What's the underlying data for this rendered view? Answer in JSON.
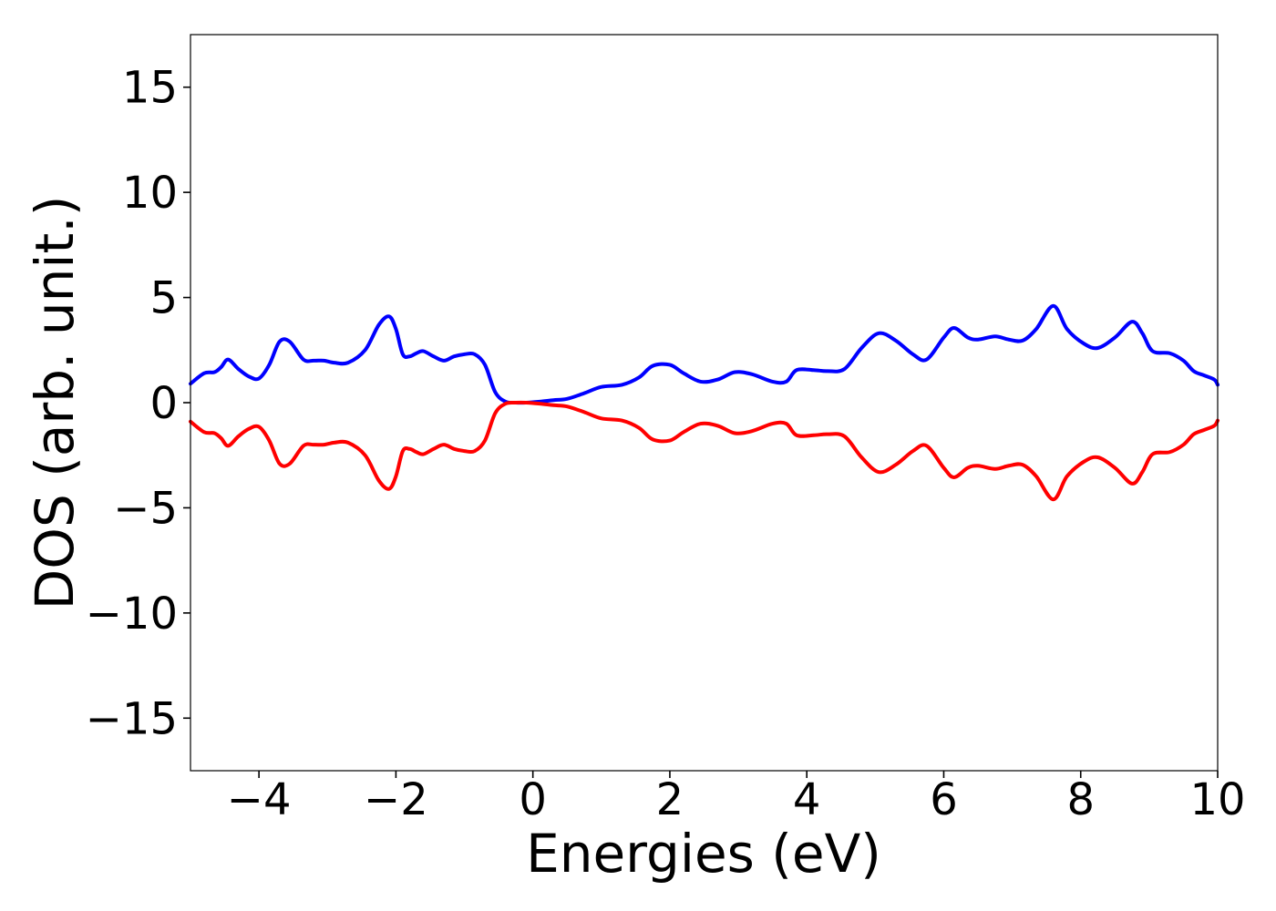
{
  "chart_data": {
    "type": "line",
    "title": "",
    "xlabel": "Energies (eV)",
    "ylabel": "DOS (arb. unit.)",
    "xlim": [
      -5,
      10
    ],
    "ylim": [
      -17.5,
      17.5
    ],
    "xticks": [
      -4,
      -2,
      0,
      2,
      4,
      6,
      8,
      10
    ],
    "yticks": [
      15,
      10,
      5,
      0,
      -5,
      -10,
      -15
    ],
    "xtick_labels": [
      "−4",
      "−2",
      "0",
      "2",
      "4",
      "6",
      "8",
      "10"
    ],
    "ytick_labels": [
      "15",
      "10",
      "5",
      "0",
      "−5",
      "−10",
      "−15"
    ],
    "grid": false,
    "series": [
      {
        "color": "#0000ff",
        "x": [
          -5.0,
          -4.8,
          -4.65,
          -4.55,
          -4.45,
          -4.3,
          -4.15,
          -4.0,
          -3.85,
          -3.7,
          -3.55,
          -3.35,
          -3.2,
          -3.05,
          -2.9,
          -2.7,
          -2.45,
          -2.25,
          -2.1,
          -2.0,
          -1.9,
          -1.8,
          -1.7,
          -1.6,
          -1.45,
          -1.3,
          -1.15,
          -1.0,
          -0.85,
          -0.7,
          -0.55,
          -0.4,
          -0.25,
          -0.1,
          0.1,
          0.3,
          0.5,
          0.75,
          1.0,
          1.3,
          1.55,
          1.75,
          2.0,
          2.2,
          2.45,
          2.7,
          2.95,
          3.2,
          3.5,
          3.7,
          3.85,
          4.1,
          4.3,
          4.55,
          4.8,
          5.05,
          5.3,
          5.55,
          5.75,
          6.0,
          6.15,
          6.35,
          6.5,
          6.75,
          6.95,
          7.15,
          7.35,
          7.6,
          7.8,
          8.05,
          8.25,
          8.5,
          8.75,
          8.9,
          9.05,
          9.3,
          9.5,
          9.65,
          9.8,
          9.95,
          10.0
        ],
        "y": [
          0.9,
          1.4,
          1.45,
          1.7,
          2.05,
          1.6,
          1.25,
          1.15,
          1.8,
          2.9,
          2.9,
          2.05,
          2.0,
          2.0,
          1.9,
          1.9,
          2.5,
          3.7,
          4.1,
          3.5,
          2.3,
          2.2,
          2.35,
          2.45,
          2.2,
          2.0,
          2.2,
          2.3,
          2.3,
          1.8,
          0.5,
          0.05,
          0.0,
          0.0,
          0.05,
          0.12,
          0.18,
          0.45,
          0.75,
          0.85,
          1.2,
          1.75,
          1.8,
          1.4,
          1.0,
          1.1,
          1.45,
          1.35,
          1.0,
          1.0,
          1.55,
          1.55,
          1.5,
          1.6,
          2.6,
          3.3,
          2.95,
          2.3,
          2.05,
          3.1,
          3.55,
          3.1,
          3.0,
          3.15,
          3.0,
          2.95,
          3.5,
          4.6,
          3.5,
          2.8,
          2.6,
          3.1,
          3.85,
          3.3,
          2.45,
          2.35,
          2.0,
          1.5,
          1.3,
          1.1,
          0.85
        ]
      },
      {
        "color": "#ff0000",
        "x": [
          -5.0,
          -4.8,
          -4.65,
          -4.55,
          -4.45,
          -4.3,
          -4.15,
          -4.0,
          -3.85,
          -3.7,
          -3.55,
          -3.35,
          -3.2,
          -3.05,
          -2.9,
          -2.7,
          -2.45,
          -2.25,
          -2.1,
          -2.0,
          -1.9,
          -1.8,
          -1.7,
          -1.6,
          -1.45,
          -1.3,
          -1.15,
          -1.0,
          -0.85,
          -0.7,
          -0.55,
          -0.4,
          -0.25,
          -0.1,
          0.1,
          0.3,
          0.5,
          0.75,
          1.0,
          1.3,
          1.55,
          1.75,
          2.0,
          2.2,
          2.45,
          2.7,
          2.95,
          3.2,
          3.5,
          3.7,
          3.85,
          4.1,
          4.3,
          4.55,
          4.8,
          5.05,
          5.3,
          5.55,
          5.75,
          6.0,
          6.15,
          6.35,
          6.5,
          6.75,
          6.95,
          7.15,
          7.35,
          7.6,
          7.8,
          8.05,
          8.25,
          8.5,
          8.75,
          8.9,
          9.05,
          9.3,
          9.5,
          9.65,
          9.8,
          9.95,
          10.0
        ],
        "y": [
          -0.9,
          -1.4,
          -1.45,
          -1.7,
          -2.05,
          -1.6,
          -1.25,
          -1.15,
          -1.8,
          -2.9,
          -2.9,
          -2.05,
          -2.0,
          -2.0,
          -1.9,
          -1.9,
          -2.5,
          -3.7,
          -4.1,
          -3.5,
          -2.3,
          -2.2,
          -2.35,
          -2.45,
          -2.2,
          -2.0,
          -2.2,
          -2.3,
          -2.3,
          -1.8,
          -0.5,
          -0.05,
          0.0,
          0.0,
          -0.05,
          -0.12,
          -0.18,
          -0.45,
          -0.75,
          -0.85,
          -1.2,
          -1.75,
          -1.8,
          -1.4,
          -1.0,
          -1.1,
          -1.45,
          -1.35,
          -1.0,
          -1.0,
          -1.55,
          -1.55,
          -1.5,
          -1.6,
          -2.6,
          -3.3,
          -2.95,
          -2.3,
          -2.05,
          -3.1,
          -3.55,
          -3.1,
          -3.0,
          -3.15,
          -3.0,
          -2.95,
          -3.5,
          -4.6,
          -3.5,
          -2.8,
          -2.6,
          -3.1,
          -3.85,
          -3.3,
          -2.45,
          -2.35,
          -2.0,
          -1.5,
          -1.3,
          -1.1,
          -0.85
        ]
      }
    ]
  }
}
